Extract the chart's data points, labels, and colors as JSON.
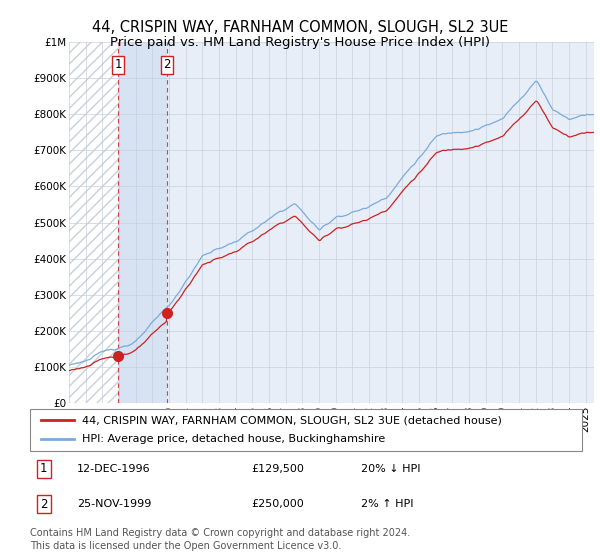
{
  "title": "44, CRISPIN WAY, FARNHAM COMMON, SLOUGH, SL2 3UE",
  "subtitle": "Price paid vs. HM Land Registry's House Price Index (HPI)",
  "ylim": [
    0,
    1000000
  ],
  "yticks": [
    0,
    100000,
    200000,
    300000,
    400000,
    500000,
    600000,
    700000,
    800000,
    900000,
    1000000
  ],
  "ytick_labels": [
    "£0",
    "£100K",
    "£200K",
    "£300K",
    "£400K",
    "£500K",
    "£600K",
    "£700K",
    "£800K",
    "£900K",
    "£1M"
  ],
  "xlim_start": 1994.0,
  "xlim_end": 2025.5,
  "transaction_dates": [
    1996.958,
    1999.9
  ],
  "transaction_prices": [
    129500,
    250000
  ],
  "transaction_labels": [
    "1",
    "2"
  ],
  "vline_color": "#cc3333",
  "marker_color": "#cc2222",
  "marker_size": 7,
  "hpi_line_color": "#7aaadd",
  "price_line_color": "#cc2222",
  "background_color": "#ffffff",
  "plot_bg_color": "#e8eef8",
  "grid_color": "#c8d0dc",
  "hatch_color": "#c8d0dc",
  "shade_color": "#d0ddf0",
  "legend_entry1": "44, CRISPIN WAY, FARNHAM COMMON, SLOUGH, SL2 3UE (detached house)",
  "legend_entry2": "HPI: Average price, detached house, Buckinghamshire",
  "table_rows": [
    {
      "num": "1",
      "date": "12-DEC-1996",
      "price": "£129,500",
      "hpi": "20% ↓ HPI"
    },
    {
      "num": "2",
      "date": "25-NOV-1999",
      "price": "£250,000",
      "hpi": "2% ↑ HPI"
    }
  ],
  "footer": "Contains HM Land Registry data © Crown copyright and database right 2024.\nThis data is licensed under the Open Government Licence v3.0.",
  "title_fontsize": 10.5,
  "subtitle_fontsize": 9.5,
  "tick_fontsize": 7.5,
  "legend_fontsize": 8,
  "table_fontsize": 8,
  "footer_fontsize": 7
}
